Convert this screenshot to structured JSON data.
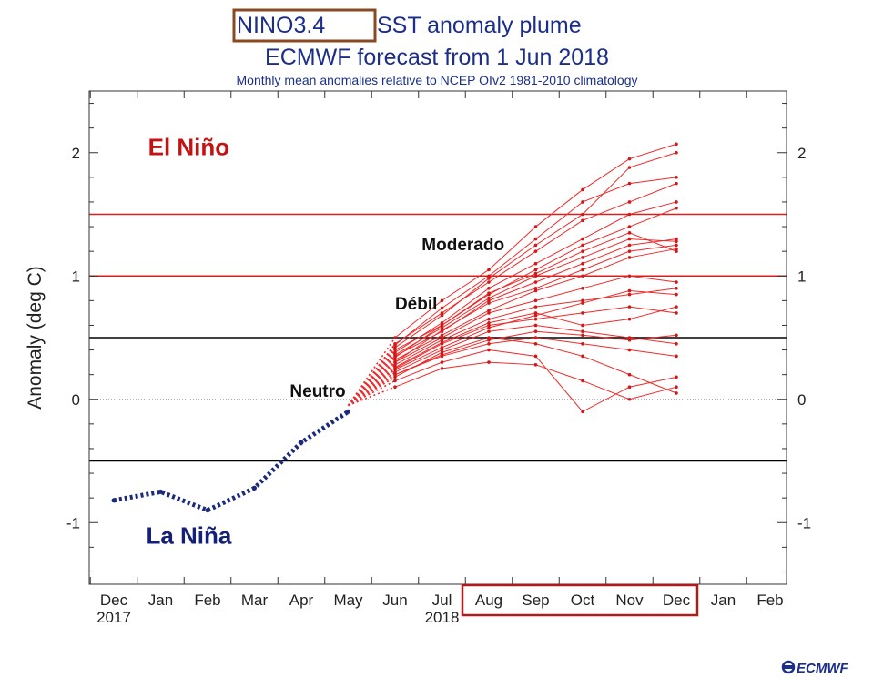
{
  "chart_data": {
    "type": "line",
    "title": "NINO3.4 SST anomaly plume",
    "title_highlight": "NINO3.4",
    "title_rest": "SST anomaly plume",
    "subtitle": "ECMWF forecast from 1 Jun 2018",
    "note": "Monthly mean anomalies relative to NCEP OIv2 1981-2010 climatology",
    "ylabel": "Anomaly (deg C)",
    "ylim": [
      -1.5,
      2.5
    ],
    "yticks": [
      -1,
      0,
      1,
      2
    ],
    "months": [
      "Dec",
      "Jan",
      "Feb",
      "Mar",
      "Apr",
      "May",
      "Jun",
      "Jul",
      "Aug",
      "Sep",
      "Oct",
      "Nov",
      "Dec",
      "Jan",
      "Feb"
    ],
    "years": [
      {
        "label": "2017",
        "month_index": 0
      },
      {
        "label": "2018",
        "month_index": 7
      }
    ],
    "highlight_months": [
      "Aug",
      "Sep",
      "Oct",
      "Nov",
      "Dec"
    ],
    "observed": {
      "name": "Observed",
      "color": "#1b2a7a",
      "month_index": [
        0,
        1,
        2,
        3,
        4,
        5
      ],
      "values": [
        -0.82,
        -0.75,
        -0.9,
        -0.72,
        -0.35,
        -0.1
      ]
    },
    "thresholds": [
      {
        "value": 1.5,
        "color": "#d42020"
      },
      {
        "value": 1.0,
        "color": "#d42020"
      },
      {
        "value": 0.5,
        "color": "#000000"
      },
      {
        "value": -0.5,
        "color": "#000000"
      }
    ],
    "ensemble": {
      "name": "Forecast members",
      "color": "#ee2a2a",
      "start_month_index": 5,
      "start_value": -0.05,
      "month_index": [
        6,
        7,
        8,
        9,
        10,
        11,
        12
      ],
      "members": [
        [
          0.1,
          0.25,
          0.3,
          0.28,
          0.15,
          0.0,
          0.1
        ],
        [
          0.15,
          0.3,
          0.4,
          0.35,
          -0.1,
          0.1,
          0.18
        ],
        [
          0.2,
          0.35,
          0.45,
          0.5,
          0.45,
          0.4,
          0.35
        ],
        [
          0.25,
          0.45,
          0.6,
          0.65,
          0.7,
          0.75,
          0.7
        ],
        [
          0.3,
          0.5,
          0.7,
          0.8,
          0.9,
          1.0,
          0.95
        ],
        [
          0.35,
          0.55,
          0.8,
          0.95,
          1.1,
          1.25,
          1.3
        ],
        [
          0.4,
          0.6,
          0.85,
          1.05,
          1.25,
          1.4,
          1.55
        ],
        [
          0.45,
          0.7,
          0.95,
          1.2,
          1.45,
          1.6,
          1.75
        ],
        [
          0.5,
          0.8,
          1.05,
          1.4,
          1.7,
          1.95,
          2.07
        ],
        [
          0.22,
          0.4,
          0.55,
          0.6,
          0.55,
          0.5,
          0.45
        ],
        [
          0.28,
          0.48,
          0.65,
          0.75,
          0.8,
          0.85,
          0.9
        ],
        [
          0.32,
          0.52,
          0.72,
          0.88,
          1.0,
          1.15,
          1.22
        ],
        [
          0.38,
          0.62,
          0.9,
          1.1,
          1.3,
          1.5,
          1.6
        ],
        [
          0.42,
          0.68,
          0.98,
          1.25,
          1.5,
          1.88,
          2.0
        ],
        [
          0.18,
          0.38,
          0.5,
          0.45,
          0.35,
          0.2,
          0.05
        ],
        [
          0.26,
          0.46,
          0.62,
          0.7,
          0.6,
          0.65,
          0.75
        ],
        [
          0.3,
          0.56,
          0.78,
          0.9,
          1.05,
          1.2,
          1.25
        ],
        [
          0.36,
          0.58,
          0.82,
          1.0,
          1.15,
          1.3,
          1.28
        ],
        [
          0.44,
          0.74,
          1.0,
          1.3,
          1.6,
          1.75,
          1.8
        ],
        [
          0.24,
          0.42,
          0.58,
          0.68,
          0.78,
          0.88,
          0.85
        ],
        [
          0.34,
          0.6,
          0.86,
          1.02,
          1.2,
          1.35,
          1.2
        ],
        [
          0.2,
          0.36,
          0.48,
          0.55,
          0.52,
          0.48,
          0.52
        ]
      ]
    },
    "regions": [
      {
        "label": "El Niño",
        "value": 1.98,
        "month_pos": 1.6,
        "size": 26,
        "color": "#c41212"
      },
      {
        "label": "La Niña",
        "value": -1.17,
        "month_pos": 1.6,
        "size": 26,
        "color": "#12207a"
      },
      {
        "label": "Moderado",
        "value": 1.21,
        "month_pos": 7.45,
        "size": 19,
        "color": "#111111"
      },
      {
        "label": "Débil",
        "value": 0.73,
        "month_pos": 6.45,
        "size": 19,
        "color": "#111111"
      },
      {
        "label": "Neutro",
        "value": 0.02,
        "month_pos": 4.35,
        "size": 19,
        "color": "#111111"
      }
    ],
    "logo": "ECMWF"
  }
}
